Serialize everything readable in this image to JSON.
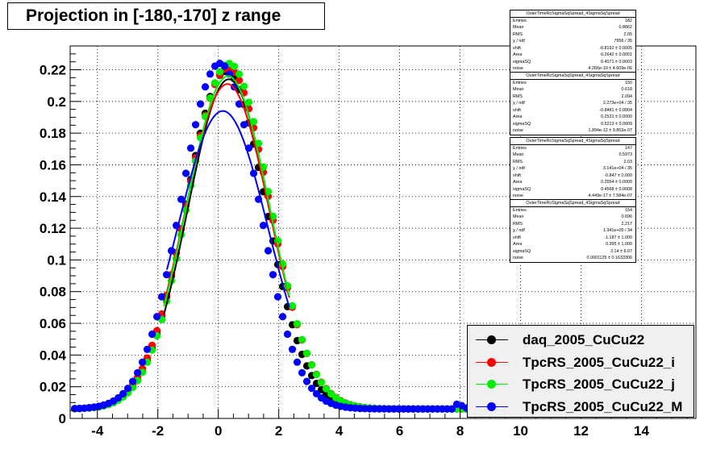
{
  "chart_data": {
    "type": "scatter",
    "title": "Projection in [-180,-170] z range",
    "xlim": [
      -4.9,
      15.8
    ],
    "ylim": [
      0,
      0.235
    ],
    "xticks": [
      -4,
      -2,
      0,
      2,
      4,
      6,
      8,
      10,
      12,
      14
    ],
    "xtick_labels": [
      "-4",
      "-2",
      "0",
      "2",
      "4",
      "6",
      "8",
      "10",
      "12",
      "14"
    ],
    "yticks": [
      0,
      0.02,
      0.04,
      0.06,
      0.08,
      0.1,
      0.12,
      0.14,
      0.16,
      0.18,
      0.2,
      0.22
    ],
    "ytick_labels": [
      "0",
      "0.02",
      "0.04",
      "0.06",
      "0.08",
      "0.1",
      "0.12",
      "0.14",
      "0.16",
      "0.18",
      "0.2",
      "0.22"
    ],
    "grid": true,
    "legend_position": "bottom-right",
    "series": [
      {
        "name": "daq_2005_CuCu22",
        "color": "#000000",
        "gauss": {
          "mean": 0.25,
          "sigma": 1.32,
          "amp": 0.213,
          "base": 0.006
        },
        "fit": {
          "mean": 0.35,
          "sigma": 1.36,
          "amp": 0.208,
          "base": 0.006
        }
      },
      {
        "name": "TpcRS_2005_CuCu22_i",
        "color": "#ff0000",
        "gauss": {
          "mean": 0.32,
          "sigma": 1.37,
          "amp": 0.215,
          "base": 0.006
        },
        "fit": {
          "mean": 0.3,
          "sigma": 1.4,
          "amp": 0.205,
          "base": 0.006
        }
      },
      {
        "name": "TpcRS_2005_CuCu22_j",
        "color": "#00ee00",
        "gauss": {
          "mean": 0.35,
          "sigma": 1.35,
          "amp": 0.218,
          "base": 0.006
        },
        "fit": {
          "mean": 0.32,
          "sigma": 1.38,
          "amp": 0.21,
          "base": 0.006
        }
      },
      {
        "name": "TpcRS_2005_CuCu22_M",
        "color": "#0000ff",
        "gauss": {
          "mean": 0.05,
          "sigma": 1.28,
          "amp": 0.218,
          "base": 0.006
        },
        "fit": {
          "mean": 0.15,
          "sigma": 1.5,
          "amp": 0.188,
          "base": 0.006
        }
      }
    ]
  },
  "stats": [
    {
      "title": "OuterTimeRcSigmaSqSpread_4SigmaSqSpread",
      "rows": [
        [
          "Entries",
          "182"
        ],
        [
          "Mean",
          "0.8862"
        ],
        [
          "RMS",
          "2.05"
        ],
        [
          "χ  / ndf",
          "7856 / 35"
        ],
        [
          "shift",
          "-0.8192 ± 0.0005"
        ],
        [
          "Area",
          "0.2642 ± 0.0001"
        ],
        [
          "sigmaSQ",
          "0.4071 ± 0.0003"
        ],
        [
          "noise",
          "4.266e-10 ± 4.609e-06"
        ]
      ]
    },
    {
      "title": "OuterTimeRcSigmaSqSpread_4SigmaSqSpread",
      "rows": [
        [
          "Entries",
          "150"
        ],
        [
          "Mean",
          "0.618"
        ],
        [
          "RMS",
          "2.094"
        ],
        [
          "χ  / ndf",
          "2.273e+04 / 35"
        ],
        [
          "shift",
          "-0.8481 ± 0.0004"
        ],
        [
          "Area",
          "0.2531 ± 0.0000"
        ],
        [
          "sigmaSQ",
          "0.5213 ± 0.0009"
        ],
        [
          "noise",
          "1.894e-12 ± 9.852e-07"
        ]
      ]
    },
    {
      "title": "OuterTimeRcSigmaSqSpread_4SigmaSqSpread",
      "rows": [
        [
          "Entries",
          "147"
        ],
        [
          "Mean",
          "0.5973"
        ],
        [
          "RMS",
          "2.03"
        ],
        [
          "χ  / ndf",
          "3.141e+04 / 35"
        ],
        [
          "shift",
          "-0.847 ± 0.000"
        ],
        [
          "Area",
          "0.2554 ± 0.0000"
        ],
        [
          "sigmaSQ",
          "0.4568 ± 0.0008"
        ],
        [
          "noise",
          "4.449e-17 ± 7.584e-07"
        ]
      ]
    },
    {
      "title": "OuterTimeRcSigmaSqSpread_4SigmaSqSpread",
      "rows": [
        [
          "Entries",
          "154"
        ],
        [
          "Mean",
          "0.696"
        ],
        [
          "RMS",
          "2.217"
        ],
        [
          "χ  / ndf",
          "1.341e+05 / 34"
        ],
        [
          "shift",
          "-1.187 ± 1.000"
        ],
        [
          "Area",
          "0.395 ± 1.000"
        ],
        [
          "sigmaSQ",
          "2.14 ± 6.07"
        ],
        [
          "noise",
          "0.0001125 ± 0.1633306"
        ]
      ]
    }
  ]
}
